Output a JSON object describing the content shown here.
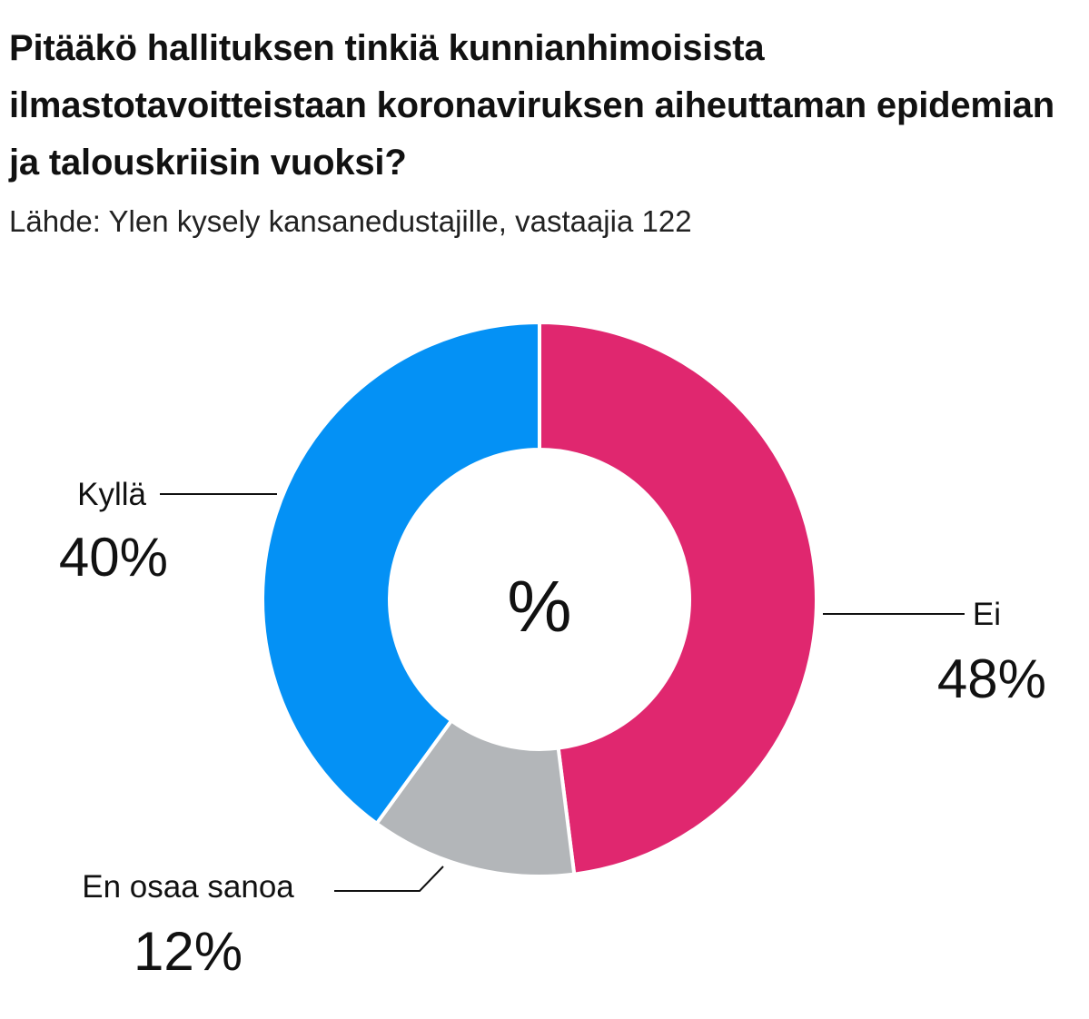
{
  "chart_data": {
    "type": "pie",
    "title": "Pitääkö hallituksen tinkiä kunnianhimoisista ilmastotavoitteistaan koronaviruksen aiheuttaman epidemian ja talouskriisin vuoksi?",
    "subtitle": "Lähde: Ylen kysely kansanedustajille, vastaajia 122",
    "center_label": "%",
    "donut": true,
    "slices": [
      {
        "label": "Ei",
        "value": 48,
        "value_label": "48%",
        "color": "#e0276f"
      },
      {
        "label": "En osaa sanoa",
        "value": 12,
        "value_label": "12%",
        "color": "#b3b6b9"
      },
      {
        "label": "Kyllä",
        "value": 40,
        "value_label": "40%",
        "color": "#0491f5"
      }
    ]
  }
}
